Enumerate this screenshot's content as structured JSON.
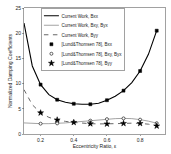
{
  "chart_data": {
    "type": "line",
    "xlabel": "Eccentricity Ratio, ε",
    "ylabel": "Normalized Damping Coefficients",
    "xlim": [
      0.1,
      0.95
    ],
    "ylim": [
      0,
      25
    ],
    "xticks": [
      0.2,
      0.4,
      0.6,
      0.8
    ],
    "yticks": [
      0,
      5,
      10,
      15,
      20,
      25
    ],
    "grid": false,
    "legend": "upper left",
    "series": [
      {
        "name": "Current Work, Bxx",
        "type": "line",
        "line_style": "solid",
        "color": "#000000",
        "x": [
          0.1,
          0.15,
          0.2,
          0.25,
          0.3,
          0.35,
          0.4,
          0.45,
          0.5,
          0.55,
          0.6,
          0.65,
          0.7,
          0.75,
          0.8,
          0.85,
          0.9
        ],
        "values": [
          22.0,
          13.5,
          9.8,
          7.8,
          6.8,
          6.3,
          6.0,
          5.9,
          5.9,
          6.1,
          6.7,
          7.5,
          8.6,
          10.2,
          12.5,
          15.8,
          20.5
        ]
      },
      {
        "name": "Current Work, Bxy, Byx",
        "type": "line",
        "line_style": "solid",
        "color": "#999999",
        "x": [
          0.1,
          0.15,
          0.2,
          0.25,
          0.3,
          0.35,
          0.4,
          0.45,
          0.5,
          0.55,
          0.6,
          0.65,
          0.7,
          0.75,
          0.8,
          0.85,
          0.9
        ],
        "values": [
          2.2,
          2.1,
          2.05,
          2.05,
          2.1,
          2.2,
          2.35,
          2.5,
          2.65,
          2.8,
          2.95,
          3.05,
          3.1,
          3.05,
          2.85,
          2.55,
          2.15
        ]
      },
      {
        "name": "Current Work, Byy",
        "type": "line",
        "line_style": "dashed",
        "color": "#555555",
        "x": [
          0.1,
          0.15,
          0.2,
          0.25,
          0.3,
          0.35,
          0.4,
          0.45,
          0.5,
          0.55,
          0.6,
          0.65,
          0.7,
          0.75,
          0.8,
          0.85,
          0.9
        ],
        "values": [
          8.8,
          5.8,
          4.2,
          3.3,
          2.8,
          2.5,
          2.3,
          2.15,
          2.05,
          2.0,
          2.0,
          2.05,
          2.1,
          2.15,
          2.1,
          1.95,
          1.6
        ]
      },
      {
        "name": "[Lund&Thomsen 78], Bxx",
        "type": "scatter",
        "marker": "square",
        "color": "#000000",
        "x": [
          0.2,
          0.3,
          0.4,
          0.5,
          0.6,
          0.7,
          0.8,
          0.9
        ],
        "values": [
          9.8,
          6.8,
          6.0,
          5.9,
          6.7,
          8.6,
          12.5,
          20.5
        ]
      },
      {
        "name": "[Lund&Thomsen 78], Bxy, Byx",
        "type": "scatter",
        "marker": "circle-open",
        "color": "#000000",
        "x": [
          0.2,
          0.3,
          0.4,
          0.5,
          0.6,
          0.7,
          0.8,
          0.9
        ],
        "values": [
          2.05,
          2.1,
          2.35,
          2.65,
          2.95,
          3.1,
          2.85,
          2.15
        ]
      },
      {
        "name": "[Lund&Thomsen 78], Byy",
        "type": "scatter",
        "marker": "star",
        "color": "#000000",
        "x": [
          0.2,
          0.3,
          0.4,
          0.5,
          0.6,
          0.7,
          0.8,
          0.9
        ],
        "values": [
          4.2,
          2.8,
          2.3,
          2.05,
          2.0,
          2.1,
          2.1,
          1.6
        ]
      }
    ]
  }
}
